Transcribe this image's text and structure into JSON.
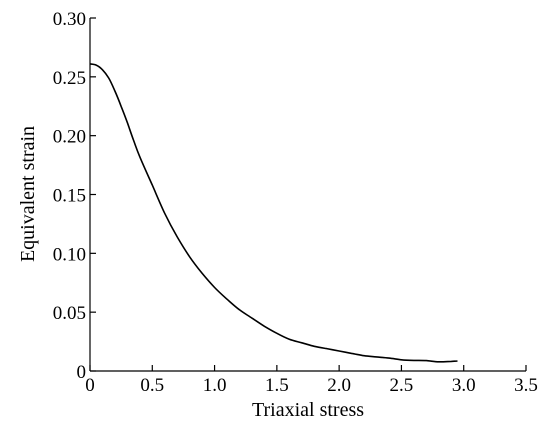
{
  "chart_data": {
    "type": "line",
    "title": "",
    "xlabel": "Triaxial stress",
    "ylabel": "Equivalent strain",
    "xlim": [
      0,
      3.5
    ],
    "ylim": [
      0,
      0.3
    ],
    "x_ticks": [
      0,
      0.5,
      1.0,
      1.5,
      2.0,
      2.5,
      3.0,
      3.5
    ],
    "x_tick_labels": [
      "0",
      "0.5",
      "1.0",
      "1.5",
      "2.0",
      "2.5",
      "3.0",
      "3.5"
    ],
    "y_ticks": [
      0,
      0.05,
      0.1,
      0.15,
      0.2,
      0.25,
      0.3
    ],
    "y_tick_labels": [
      "0",
      "0.05",
      "0.10",
      "0.15",
      "0.20",
      "0.25",
      "0.30"
    ],
    "grid": false,
    "legend": "none",
    "series": [
      {
        "color": "#000000",
        "x": [
          0,
          0.05,
          0.1,
          0.15,
          0.2,
          0.25,
          0.3,
          0.35,
          0.4,
          0.5,
          0.6,
          0.7,
          0.8,
          0.9,
          1.0,
          1.1,
          1.2,
          1.3,
          1.4,
          1.5,
          1.6,
          1.7,
          1.8,
          1.9,
          2.0,
          2.1,
          2.2,
          2.3,
          2.4,
          2.5,
          2.6,
          2.7,
          2.8,
          2.9,
          2.95
        ],
        "y": [
          0.261,
          0.26,
          0.256,
          0.249,
          0.238,
          0.225,
          0.211,
          0.196,
          0.182,
          0.158,
          0.134,
          0.114,
          0.097,
          0.083,
          0.071,
          0.061,
          0.052,
          0.045,
          0.038,
          0.032,
          0.027,
          0.024,
          0.021,
          0.019,
          0.017,
          0.015,
          0.013,
          0.012,
          0.011,
          0.0095,
          0.009,
          0.0088,
          0.0078,
          0.0082,
          0.0085
        ]
      }
    ]
  }
}
